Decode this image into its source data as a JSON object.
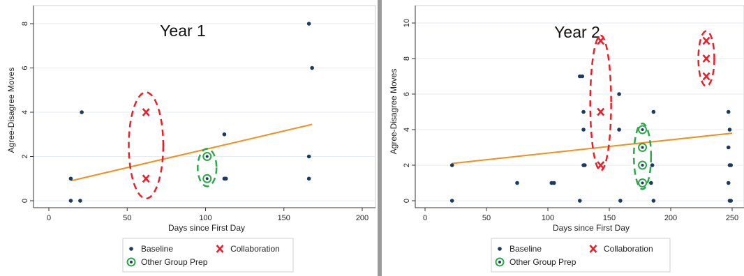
{
  "colors": {
    "baseline": "#1c3a5e",
    "collaboration": "#e8202a",
    "other_group_prep": "#2ca84a",
    "fit_line": "#f0901e",
    "grid": "#e4ecf2",
    "axis": "#333333"
  },
  "legend": {
    "baseline_label": "Baseline",
    "collaboration_label": "Collaboration",
    "other_group_prep_label": "Other Group Prep"
  },
  "chart_data": [
    {
      "type": "scatter",
      "title": "Year 1",
      "xlabel": "Days since First Day",
      "ylabel": "Agree-Disagree Moves",
      "xlim": [
        0,
        200
      ],
      "ylim": [
        -0.3,
        8.6
      ],
      "x_ticks": [
        0,
        50,
        100,
        150,
        200
      ],
      "y_ticks": [
        0,
        2,
        4,
        6,
        8
      ],
      "grid": true,
      "legend_position": "bottom",
      "series": [
        {
          "name": "Baseline",
          "marker": "dot",
          "points": [
            [
              14,
              1
            ],
            [
              14,
              0
            ],
            [
              20,
              0
            ],
            [
              21,
              4
            ],
            [
              112,
              3
            ],
            [
              112,
              1
            ],
            [
              113,
              1
            ],
            [
              166,
              8
            ],
            [
              166,
              2
            ],
            [
              166,
              1
            ],
            [
              168,
              6
            ]
          ]
        },
        {
          "name": "Collaboration",
          "marker": "x",
          "points": [
            [
              62,
              4
            ],
            [
              62,
              1
            ]
          ]
        },
        {
          "name": "Other Group Prep",
          "marker": "ring",
          "points": [
            [
              101,
              2
            ],
            [
              101,
              1
            ]
          ]
        }
      ],
      "fit_line": {
        "x": [
          14,
          168
        ],
        "y": [
          0.9,
          3.45
        ]
      },
      "highlight_ellipses": [
        {
          "color": "collaboration",
          "cx": 62,
          "cy": 2.5,
          "rx": 11,
          "ry": 2.4
        },
        {
          "color": "other_group_prep",
          "cx": 101,
          "cy": 1.5,
          "rx": 6,
          "ry": 0.85
        }
      ]
    },
    {
      "type": "scatter",
      "title": "Year 2",
      "xlabel": "Days since First Day",
      "ylabel": "Agree-Disagree Moves",
      "xlim": [
        0,
        250
      ],
      "ylim": [
        -0.3,
        10.2
      ],
      "x_ticks": [
        0,
        50,
        100,
        150,
        200,
        250
      ],
      "y_ticks": [
        0,
        2,
        4,
        6,
        8,
        10
      ],
      "grid": true,
      "legend_position": "bottom",
      "series": [
        {
          "name": "Baseline",
          "marker": "dot",
          "points": [
            [
              22,
              2
            ],
            [
              22,
              0
            ],
            [
              75,
              1
            ],
            [
              103,
              1
            ],
            [
              105,
              1
            ],
            [
              126,
              7
            ],
            [
              128,
              7
            ],
            [
              126,
              0
            ],
            [
              129,
              5
            ],
            [
              129,
              4
            ],
            [
              129,
              2
            ],
            [
              130,
              2
            ],
            [
              158,
              6
            ],
            [
              159,
              0
            ],
            [
              158,
              4
            ],
            [
              186,
              5
            ],
            [
              185,
              2
            ],
            [
              184,
              1
            ],
            [
              186,
              0
            ],
            [
              247,
              5
            ],
            [
              248,
              4
            ],
            [
              247,
              3
            ],
            [
              248,
              2
            ],
            [
              249,
              2
            ],
            [
              247,
              1
            ],
            [
              248,
              0
            ],
            [
              249,
              0
            ]
          ]
        },
        {
          "name": "Collaboration",
          "marker": "x",
          "points": [
            [
              143,
              9
            ],
            [
              143,
              5
            ],
            [
              143,
              2
            ],
            [
              229,
              9
            ],
            [
              229,
              8
            ],
            [
              229,
              7
            ]
          ]
        },
        {
          "name": "Other Group Prep",
          "marker": "ring",
          "points": [
            [
              177,
              4
            ],
            [
              177,
              3
            ],
            [
              177,
              2
            ],
            [
              177,
              1
            ]
          ]
        }
      ],
      "fit_line": {
        "x": [
          22,
          250
        ],
        "y": [
          2.1,
          3.8
        ]
      },
      "highlight_ellipses": [
        {
          "color": "collaboration",
          "cx": 143,
          "cy": 5.5,
          "rx": 8.5,
          "ry": 3.8
        },
        {
          "color": "other_group_prep",
          "cx": 177,
          "cy": 2.5,
          "rx": 7,
          "ry": 1.85
        },
        {
          "color": "collaboration",
          "cx": 229,
          "cy": 8,
          "rx": 6.5,
          "ry": 1.55
        }
      ]
    }
  ]
}
